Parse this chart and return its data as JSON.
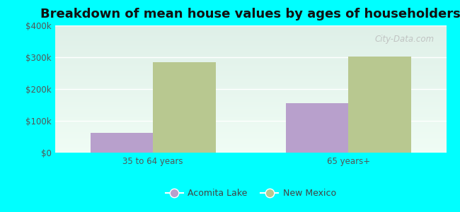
{
  "title": "Breakdown of mean house values by ages of householders",
  "categories": [
    "35 to 64 years",
    "65 years+"
  ],
  "series": {
    "Acomita Lake": [
      62000,
      155000
    ],
    "New Mexico": [
      285000,
      302000
    ]
  },
  "colors": {
    "Acomita Lake": "#b8a0cc",
    "New Mexico": "#b8c890"
  },
  "ylim": [
    0,
    400000
  ],
  "yticks": [
    0,
    100000,
    200000,
    300000,
    400000
  ],
  "ytick_labels": [
    "$0",
    "$100k",
    "$200k",
    "$300k",
    "$400k"
  ],
  "background_color": "#00FFFF",
  "plot_bg_top": "#dff0e8",
  "plot_bg_bottom": "#f0faf4",
  "bar_width": 0.32,
  "title_fontsize": 13,
  "legend_fontsize": 9,
  "tick_fontsize": 8.5,
  "watermark": "City-Data.com"
}
